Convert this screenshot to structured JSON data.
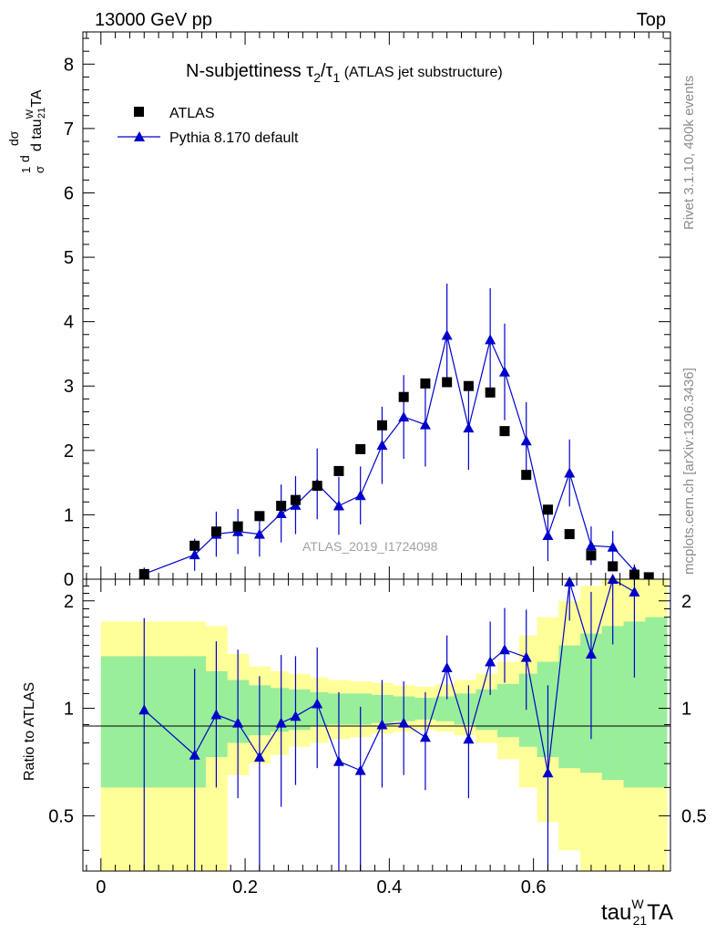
{
  "header": {
    "left_label": "13000 GeV pp",
    "right_label": "Top"
  },
  "side_labels": {
    "rivet": "Rivet 3.1.10,  400k events",
    "mcplots": "mcplots.cern.ch [arXiv:1306.3436]"
  },
  "watermark": "ATLAS_2019_I1724098",
  "chart_data": [
    {
      "type": "scatter",
      "panel": "main",
      "title": {
        "main": "N-subjettiness τ",
        "sub1": "2",
        "slash": "/τ",
        "sub2": "1",
        "tail": " (ATLAS jet substructure)"
      },
      "ylabel": {
        "one_over": "1",
        "sigma": "σ",
        "d_sigma": "dσ",
        "d_var": "d tau",
        "d_var_sup": "W",
        "d_var_sub": "21",
        "d_var_end": "TA"
      },
      "xlim": [
        -0.025,
        0.79
      ],
      "ylim": [
        0,
        8.5
      ],
      "yticks": [
        "0",
        "1",
        "2",
        "3",
        "4",
        "5",
        "6",
        "7",
        "8"
      ],
      "legend": {
        "data": "ATLAS",
        "mc": "Pythia 8.170 default"
      },
      "colors": {
        "data": "#000000",
        "mc": "#0000cc"
      },
      "series": [
        {
          "name": "ATLAS",
          "x": [
            0.06,
            0.13,
            0.16,
            0.19,
            0.22,
            0.25,
            0.27,
            0.3,
            0.33,
            0.36,
            0.39,
            0.42,
            0.45,
            0.48,
            0.51,
            0.54,
            0.56,
            0.59,
            0.62,
            0.65,
            0.68,
            0.71,
            0.74,
            0.76
          ],
          "y": [
            0.08,
            0.52,
            0.74,
            0.82,
            0.98,
            1.14,
            1.23,
            1.45,
            1.68,
            2.02,
            2.39,
            2.83,
            3.04,
            3.06,
            3.0,
            2.9,
            2.3,
            1.62,
            1.08,
            0.7,
            0.37,
            0.2,
            0.07,
            0.03
          ]
        },
        {
          "name": "Pythia 8.170 default",
          "x": [
            0.06,
            0.13,
            0.16,
            0.19,
            0.22,
            0.25,
            0.27,
            0.3,
            0.33,
            0.36,
            0.39,
            0.42,
            0.45,
            0.48,
            0.51,
            0.54,
            0.56,
            0.59,
            0.62,
            0.65,
            0.68,
            0.71,
            0.74
          ],
          "y": [
            0.08,
            0.38,
            0.7,
            0.74,
            0.7,
            1.02,
            1.15,
            1.48,
            1.14,
            1.3,
            2.08,
            2.52,
            2.4,
            3.79,
            2.35,
            3.72,
            3.22,
            2.15,
            0.68,
            1.65,
            0.52,
            0.5,
            0.13
          ],
          "yerr": [
            0.1,
            0.25,
            0.35,
            0.35,
            0.35,
            0.45,
            0.45,
            0.55,
            0.45,
            0.45,
            0.6,
            0.65,
            0.65,
            0.8,
            0.65,
            0.8,
            0.75,
            0.6,
            0.4,
            0.52,
            0.3,
            0.25,
            0.1
          ]
        }
      ]
    },
    {
      "type": "scatter",
      "panel": "ratio",
      "ylabel": "Ratio to ATLAS",
      "xlabel": {
        "base": "tau",
        "sup": "W",
        "sub": "21",
        "end": "TA"
      },
      "xlim": [
        -0.025,
        0.79
      ],
      "ylim": [
        0.35,
        2.3
      ],
      "xticks": [
        "0",
        "0.2",
        "0.4",
        "0.6"
      ],
      "yticks": [
        "0.5",
        "1",
        "2"
      ],
      "colors": {
        "inner_band": "#99ee99",
        "outer_band": "#ffff99",
        "mc": "#0000cc"
      },
      "bands": {
        "edges": [
          0.0,
          0.12,
          0.145,
          0.175,
          0.205,
          0.235,
          0.26,
          0.29,
          0.315,
          0.345,
          0.375,
          0.405,
          0.435,
          0.465,
          0.49,
          0.52,
          0.55,
          0.58,
          0.605,
          0.635,
          0.665,
          0.695,
          0.725,
          0.755,
          0.785
        ],
        "inner_lo": [
          0.6,
          0.6,
          0.73,
          0.8,
          0.84,
          0.86,
          0.87,
          0.89,
          0.9,
          0.9,
          0.91,
          0.92,
          0.93,
          0.92,
          0.9,
          0.87,
          0.83,
          0.78,
          0.73,
          0.68,
          0.66,
          0.63,
          0.6,
          0.6
        ],
        "inner_hi": [
          1.4,
          1.4,
          1.27,
          1.2,
          1.16,
          1.14,
          1.13,
          1.11,
          1.1,
          1.1,
          1.09,
          1.08,
          1.07,
          1.08,
          1.1,
          1.13,
          1.17,
          1.25,
          1.35,
          1.5,
          1.62,
          1.7,
          1.75,
          1.8
        ],
        "outer_lo": [
          0.0,
          0.0,
          0.0,
          0.65,
          0.7,
          0.74,
          0.78,
          0.8,
          0.82,
          0.83,
          0.85,
          0.86,
          0.87,
          0.86,
          0.84,
          0.8,
          0.72,
          0.6,
          0.48,
          0.4,
          0.34,
          0.2,
          0.0,
          0.0
        ],
        "outer_hi": [
          1.75,
          1.75,
          1.7,
          1.42,
          1.31,
          1.27,
          1.25,
          1.22,
          1.2,
          1.19,
          1.18,
          1.16,
          1.15,
          1.17,
          1.2,
          1.25,
          1.35,
          1.6,
          1.8,
          2.0,
          2.2,
          2.4,
          2.5,
          2.5
        ]
      },
      "series": [
        {
          "name": "Pythia 8.170 default",
          "x": [
            0.06,
            0.13,
            0.16,
            0.19,
            0.22,
            0.25,
            0.27,
            0.3,
            0.33,
            0.36,
            0.39,
            0.42,
            0.45,
            0.48,
            0.51,
            0.54,
            0.56,
            0.59,
            0.62,
            0.65,
            0.68,
            0.71,
            0.74
          ],
          "y": [
            0.99,
            0.74,
            0.96,
            0.91,
            0.73,
            0.91,
            0.95,
            1.03,
            0.71,
            0.67,
            0.9,
            0.91,
            0.83,
            1.3,
            0.82,
            1.35,
            1.46,
            1.39,
            0.66,
            2.26,
            1.42,
            2.31,
            2.12
          ],
          "yerr_lo": [
            0.8,
            0.4,
            0.36,
            0.35,
            0.4,
            0.38,
            0.34,
            0.35,
            0.36,
            0.32,
            0.3,
            0.26,
            0.24,
            0.24,
            0.26,
            0.26,
            0.28,
            0.4,
            0.4,
            0.5,
            0.6,
            0.8,
            0.9
          ],
          "yerr_hi": [
            0.8,
            0.55,
            0.58,
            0.55,
            0.5,
            0.5,
            0.45,
            0.45,
            0.4,
            0.34,
            0.3,
            0.28,
            0.28,
            0.3,
            0.34,
            0.4,
            0.45,
            0.5,
            0.5,
            0.6,
            0.7,
            0.8,
            0.9
          ]
        }
      ]
    }
  ]
}
